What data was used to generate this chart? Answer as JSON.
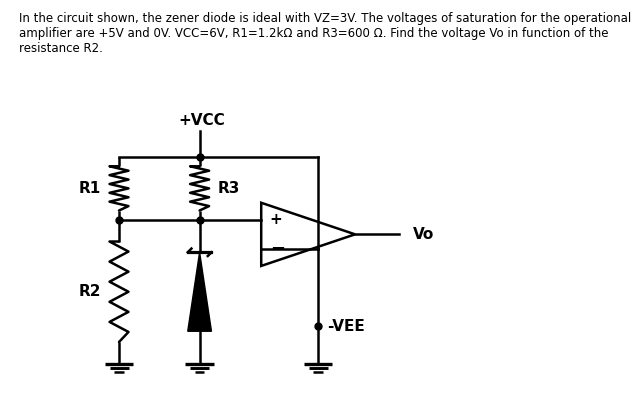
{
  "title_text": "In the circuit shown, the zener diode is ideal with VZ=3V. The voltages of saturation for the operational\namplifier are +5V and 0V. VCC=6V, R1=1.2kΩ and R3=600 Ω. Find the voltage Vo in function of the\nresistance R2.",
  "title_fontsize": 8.5,
  "bg_color": "#ffffff",
  "line_color": "#000000",
  "label_R1": "R1",
  "label_R2": "R2",
  "label_R3": "R3",
  "label_VCC": "+VCC",
  "label_VEE": "-VEE",
  "label_Vo": "Vo",
  "label_plus": "+",
  "label_minus": "−"
}
